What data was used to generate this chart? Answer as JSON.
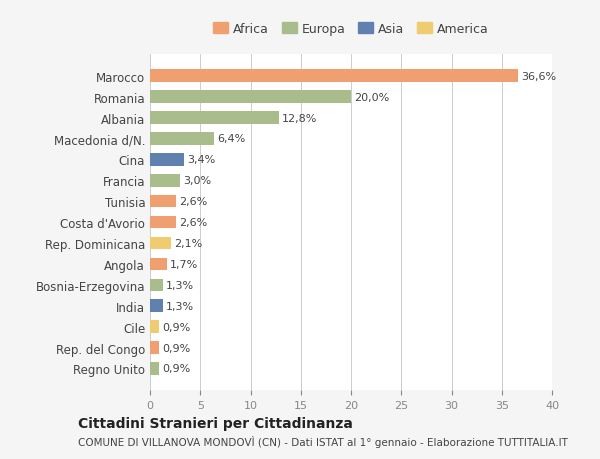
{
  "categories": [
    "Marocco",
    "Romania",
    "Albania",
    "Macedonia d/N.",
    "Cina",
    "Francia",
    "Tunisia",
    "Costa d'Avorio",
    "Rep. Dominicana",
    "Angola",
    "Bosnia-Erzegovina",
    "India",
    "Cile",
    "Rep. del Congo",
    "Regno Unito"
  ],
  "values": [
    36.6,
    20.0,
    12.8,
    6.4,
    3.4,
    3.0,
    2.6,
    2.6,
    2.1,
    1.7,
    1.3,
    1.3,
    0.9,
    0.9,
    0.9
  ],
  "labels": [
    "36,6%",
    "20,0%",
    "12,8%",
    "6,4%",
    "3,4%",
    "3,0%",
    "2,6%",
    "2,6%",
    "2,1%",
    "1,7%",
    "1,3%",
    "1,3%",
    "0,9%",
    "0,9%",
    "0,9%"
  ],
  "continent": [
    "Africa",
    "Europa",
    "Europa",
    "Europa",
    "Asia",
    "Europa",
    "Africa",
    "Africa",
    "America",
    "Africa",
    "Europa",
    "Asia",
    "America",
    "Africa",
    "Europa"
  ],
  "colors": {
    "Africa": "#F0A070",
    "Europa": "#A8BC8C",
    "Asia": "#6080B0",
    "America": "#F0CC70"
  },
  "legend_order": [
    "Africa",
    "Europa",
    "Asia",
    "America"
  ],
  "title": "Cittadini Stranieri per Cittadinanza",
  "subtitle": "COMUNE DI VILLANOVA MONDOVÌ (CN) - Dati ISTAT al 1° gennaio - Elaborazione TUTTITALIA.IT",
  "xlim": [
    0,
    40
  ],
  "xticks": [
    0,
    5,
    10,
    15,
    20,
    25,
    30,
    35,
    40
  ],
  "bg_color": "#f5f5f5",
  "bar_bg_color": "#ffffff"
}
